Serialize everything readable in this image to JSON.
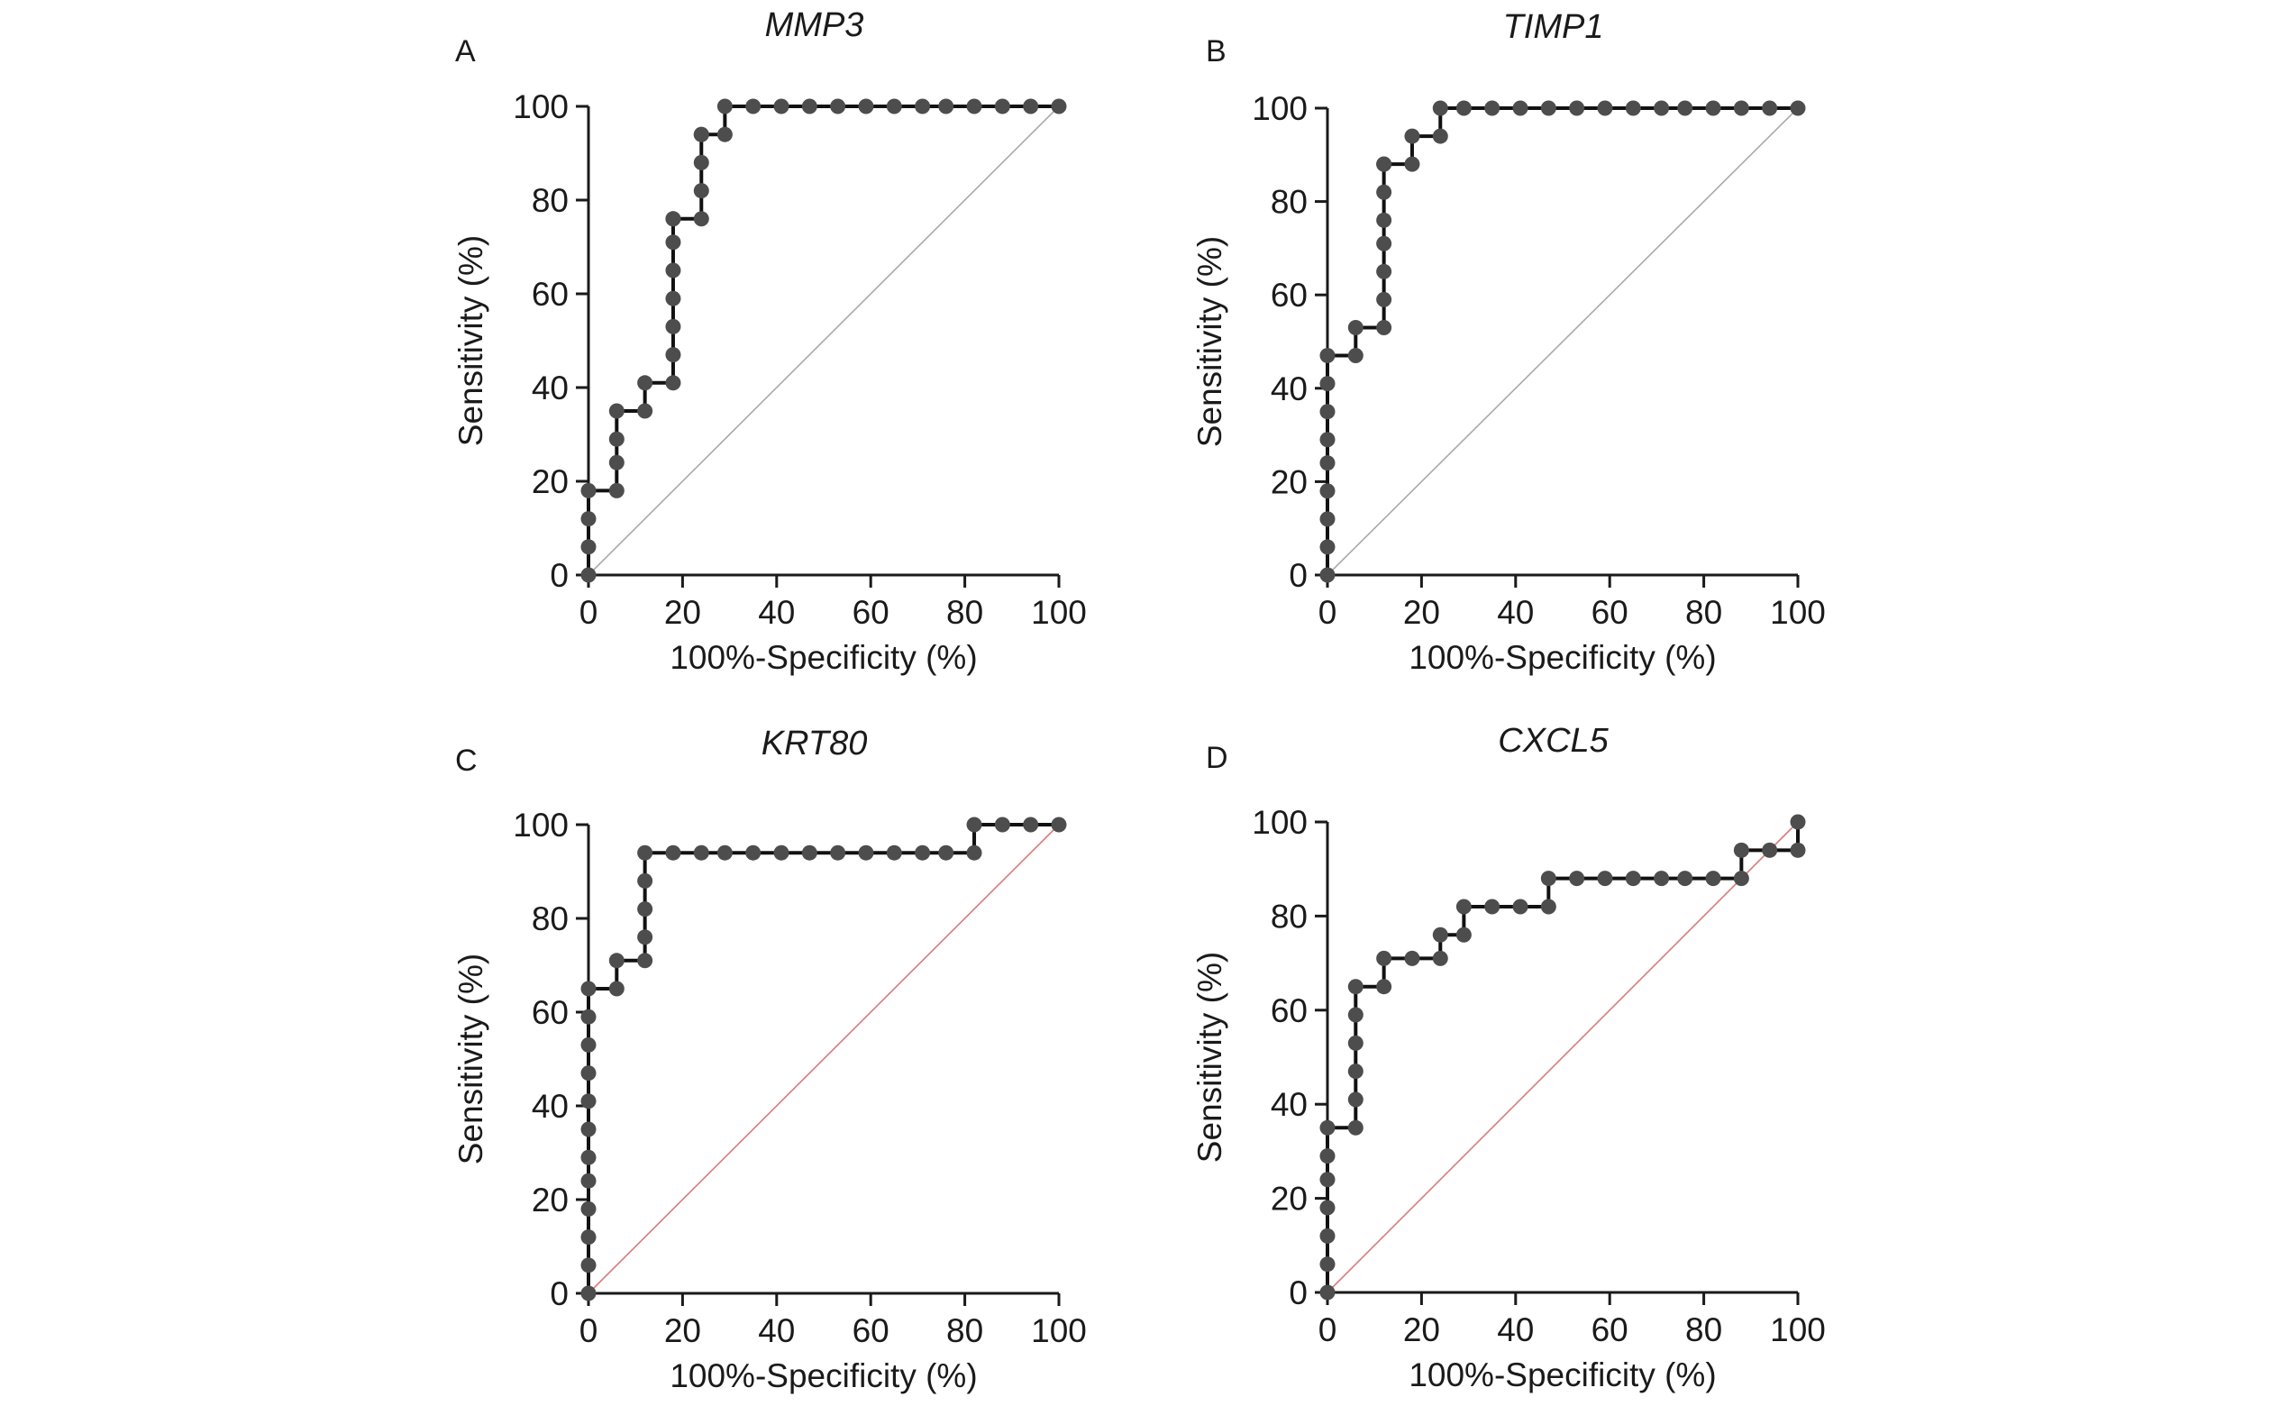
{
  "colors": {
    "curve": "#111111",
    "point": "#4d4d4d",
    "reference": "#d97a7a",
    "reference_alt": "#a9a9a9",
    "axis": "#1a1a1a"
  },
  "chart_data": [
    {
      "panel": "A",
      "type": "line",
      "title": "MMP3",
      "xlabel": "100%-Specificity (%)",
      "ylabel": "Sensitivity (%)",
      "xlim": [
        0,
        100
      ],
      "ylim": [
        0,
        100
      ],
      "xticks": [
        "0",
        "20",
        "40",
        "60",
        "80",
        "100"
      ],
      "yticks": [
        "0",
        "20",
        "40",
        "60",
        "80",
        "100"
      ],
      "grid": false,
      "reference_line": "diagonal",
      "series": [
        {
          "x": [
            0,
            0,
            0,
            0,
            6,
            6,
            6,
            6,
            12,
            12,
            18,
            18,
            18,
            18,
            18,
            18,
            18,
            18,
            24,
            24,
            24,
            24,
            24,
            29,
            29,
            35,
            41,
            47,
            53,
            59,
            65,
            71,
            76,
            82,
            88,
            94,
            100
          ],
          "y": [
            0,
            6,
            12,
            18,
            18,
            24,
            29,
            35,
            35,
            41,
            41,
            47,
            53,
            59,
            65,
            71,
            76,
            76,
            76,
            82,
            88,
            94,
            94,
            94,
            100,
            100,
            100,
            100,
            100,
            100,
            100,
            100,
            100,
            100,
            100,
            100,
            100
          ]
        }
      ]
    },
    {
      "panel": "B",
      "type": "line",
      "title": "TIMP1",
      "xlabel": "100%-Specificity (%)",
      "ylabel": "Sensitivity (%)",
      "xlim": [
        0,
        100
      ],
      "ylim": [
        0,
        100
      ],
      "xticks": [
        "0",
        "20",
        "40",
        "60",
        "80",
        "100"
      ],
      "yticks": [
        "0",
        "20",
        "40",
        "60",
        "80",
        "100"
      ],
      "grid": false,
      "reference_line": "diagonal",
      "series": [
        {
          "x": [
            0,
            0,
            0,
            0,
            0,
            0,
            0,
            0,
            0,
            6,
            6,
            12,
            12,
            12,
            12,
            12,
            12,
            12,
            12,
            18,
            18,
            24,
            24,
            29,
            35,
            41,
            47,
            53,
            59,
            65,
            71,
            76,
            82,
            88,
            94,
            100
          ],
          "y": [
            0,
            6,
            12,
            18,
            24,
            29,
            35,
            41,
            47,
            47,
            53,
            53,
            59,
            65,
            71,
            76,
            82,
            88,
            88,
            88,
            94,
            94,
            100,
            100,
            100,
            100,
            100,
            100,
            100,
            100,
            100,
            100,
            100,
            100,
            100,
            100
          ]
        }
      ]
    },
    {
      "panel": "C",
      "type": "line",
      "title": "KRT80",
      "xlabel": "100%-Specificity (%)",
      "ylabel": "Sensitivity (%)",
      "xlim": [
        0,
        100
      ],
      "ylim": [
        0,
        100
      ],
      "xticks": [
        "0",
        "20",
        "40",
        "60",
        "80",
        "100"
      ],
      "yticks": [
        "0",
        "20",
        "40",
        "60",
        "80",
        "100"
      ],
      "grid": false,
      "reference_line": "diagonal",
      "series": [
        {
          "x": [
            0,
            0,
            0,
            0,
            0,
            0,
            0,
            0,
            0,
            0,
            0,
            0,
            6,
            6,
            12,
            12,
            12,
            12,
            12,
            18,
            24,
            29,
            35,
            41,
            47,
            53,
            59,
            65,
            71,
            76,
            82,
            82,
            88,
            94,
            100
          ],
          "y": [
            0,
            6,
            12,
            18,
            24,
            29,
            35,
            41,
            47,
            53,
            59,
            65,
            65,
            71,
            71,
            76,
            82,
            88,
            94,
            94,
            94,
            94,
            94,
            94,
            94,
            94,
            94,
            94,
            94,
            94,
            94,
            100,
            100,
            100,
            100
          ]
        }
      ]
    },
    {
      "panel": "D",
      "type": "line",
      "title": "CXCL5",
      "xlabel": "100%-Specificity (%)",
      "ylabel": "Sensitivity (%)",
      "xlim": [
        0,
        100
      ],
      "ylim": [
        0,
        100
      ],
      "xticks": [
        "0",
        "20",
        "40",
        "60",
        "80",
        "100"
      ],
      "yticks": [
        "0",
        "20",
        "40",
        "60",
        "80",
        "100"
      ],
      "grid": false,
      "reference_line": "diagonal",
      "series": [
        {
          "x": [
            0,
            0,
            0,
            0,
            0,
            0,
            0,
            6,
            6,
            6,
            6,
            6,
            6,
            12,
            12,
            18,
            24,
            24,
            29,
            29,
            35,
            41,
            47,
            47,
            53,
            59,
            65,
            71,
            76,
            82,
            88,
            88,
            94,
            100,
            100
          ],
          "y": [
            0,
            6,
            12,
            18,
            24,
            29,
            35,
            35,
            41,
            47,
            53,
            59,
            65,
            65,
            71,
            71,
            71,
            76,
            76,
            82,
            82,
            82,
            82,
            88,
            88,
            88,
            88,
            88,
            88,
            88,
            88,
            94,
            94,
            94,
            100
          ]
        }
      ]
    }
  ]
}
